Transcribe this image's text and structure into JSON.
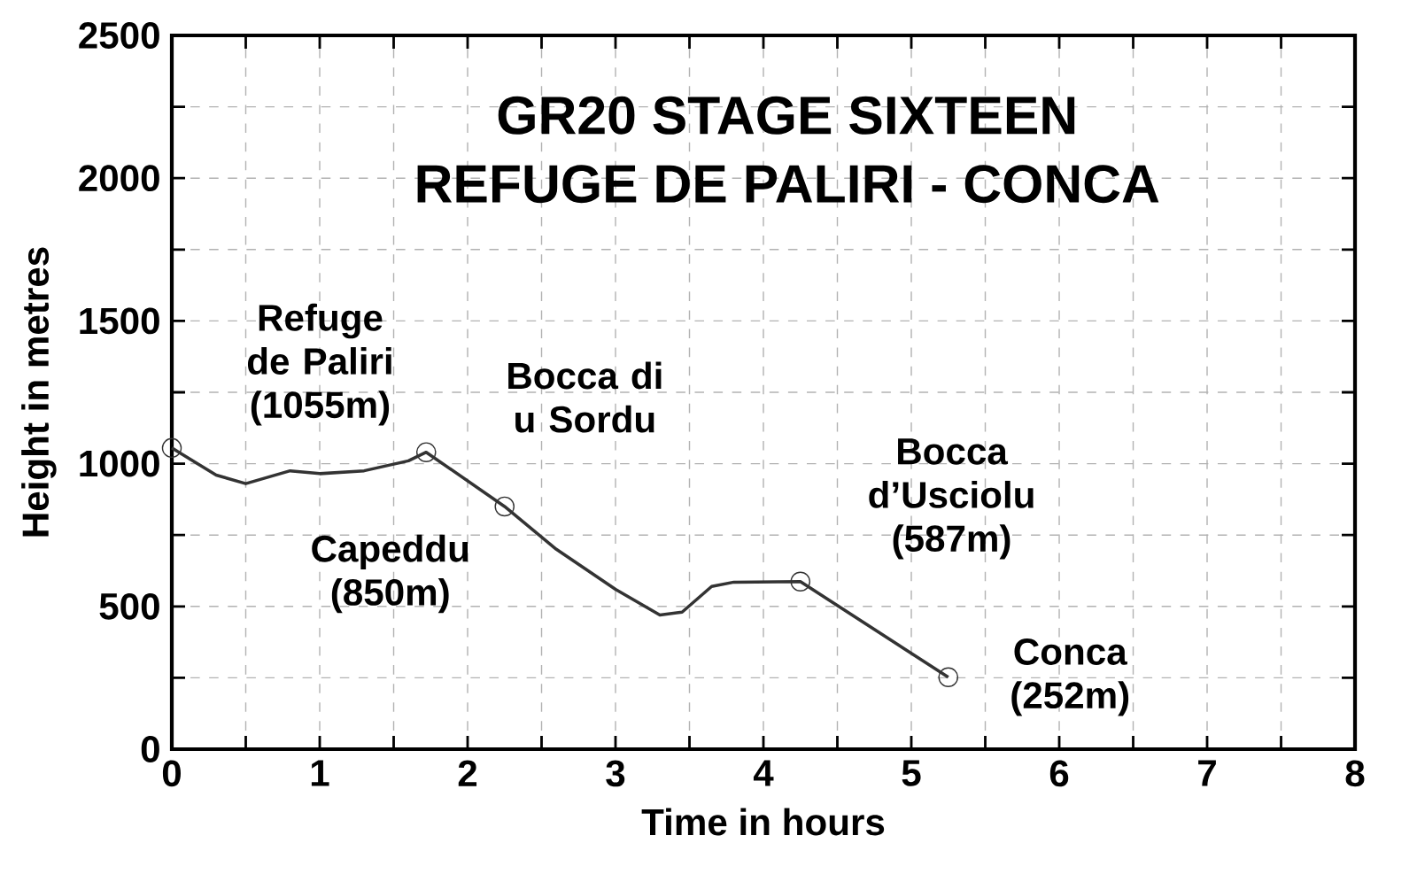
{
  "chart_data": {
    "type": "line",
    "title": "GR20 STAGE SIXTEEN",
    "subtitle": "REFUGE DE PALIRI - CONCA",
    "xlabel": "Time in hours",
    "ylabel": "Height in metres",
    "xlim": [
      0,
      8
    ],
    "ylim": [
      0,
      2500
    ],
    "xticks": [
      0,
      {
        "value": 0.5,
        "label": null
      },
      1,
      {
        "value": 1.5,
        "label": null
      },
      2,
      {
        "value": 2.5,
        "label": null
      },
      3,
      {
        "value": 3.5,
        "label": null
      },
      4,
      {
        "value": 4.5,
        "label": null
      },
      5,
      {
        "value": 5.5,
        "label": null
      },
      6,
      {
        "value": 6.5,
        "label": null
      },
      7,
      {
        "value": 7.5,
        "label": null
      },
      8
    ],
    "yticks": [
      0,
      {
        "value": 250,
        "label": null
      },
      500,
      {
        "value": 750,
        "label": null
      },
      1000,
      {
        "value": 1250,
        "label": null
      },
      1500,
      {
        "value": 1750,
        "label": null
      },
      2000,
      {
        "value": 2250,
        "label": null
      },
      2500
    ],
    "grid": true,
    "series": [
      {
        "color": "#333333",
        "marker": "none",
        "line_style": "solid",
        "x": [
          0,
          0.3,
          0.5,
          0.8,
          1.0,
          1.3,
          1.6,
          1.72,
          2.25,
          2.6,
          3.0,
          3.3,
          3.45,
          3.65,
          3.8,
          4.25,
          5.25
        ],
        "values": [
          1055,
          960,
          930,
          975,
          965,
          975,
          1010,
          1040,
          850,
          700,
          560,
          470,
          480,
          570,
          585,
          587,
          252
        ]
      },
      {
        "type": "scatter",
        "color": "#333333",
        "marker": "circle",
        "x": [
          0,
          1.72,
          2.25,
          4.25,
          5.25
        ],
        "values": [
          1055,
          1040,
          850,
          587,
          252
        ]
      }
    ],
    "annotations": [
      {
        "text": "Refuge de Paliri (1055m)",
        "x": 0,
        "y": 1055
      },
      {
        "text": "Bocca di u Sordu",
        "x": 1.72,
        "y": 1040
      },
      {
        "text": "Capeddu (850m)",
        "x": 2.25,
        "y": 850
      },
      {
        "text": "Bocca d’Usciolu (587m)",
        "x": 4.25,
        "y": 587
      },
      {
        "text": "Conca (252m)",
        "x": 5.25,
        "y": 252
      }
    ]
  }
}
